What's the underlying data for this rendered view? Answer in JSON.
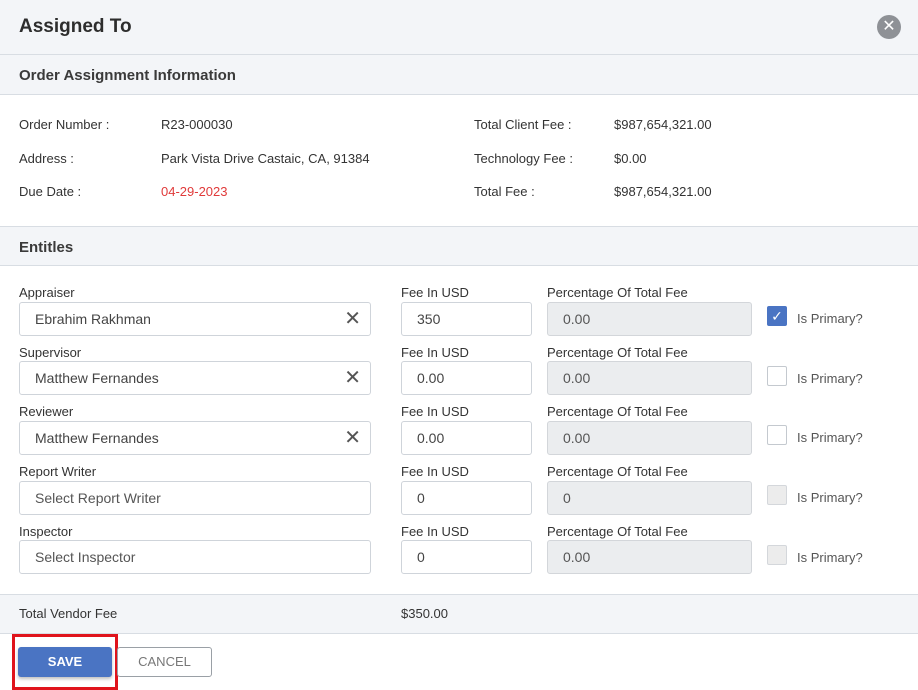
{
  "modal": {
    "title": "Assigned To"
  },
  "order_info": {
    "heading": "Order Assignment Information",
    "order_number_label": "Order Number :",
    "order_number": "R23-000030",
    "address_label": "Address :",
    "address": "Park Vista Drive Castaic, CA, 91384",
    "due_date_label": "Due Date :",
    "due_date": "04-29-2023",
    "total_client_fee_label": "Total Client Fee :",
    "total_client_fee": "$987,654,321.00",
    "technology_fee_label": "Technology Fee :",
    "technology_fee": "$0.00",
    "total_fee_label": "Total Fee :",
    "total_fee": "$987,654,321.00"
  },
  "entities": {
    "heading": "Entitles",
    "fee_label": "Fee In USD",
    "pct_label": "Percentage Of Total Fee",
    "primary_label": "Is Primary?",
    "rows": [
      {
        "role": "Appraiser",
        "person": "Ebrahim Rakhman",
        "fee": "350",
        "pct": "0.00"
      },
      {
        "role": "Supervisor",
        "person": "Matthew Fernandes",
        "fee": "0.00",
        "pct": "0.00"
      },
      {
        "role": "Reviewer",
        "person": "Matthew Fernandes",
        "fee": "0.00",
        "pct": "0.00"
      },
      {
        "role": "Report Writer",
        "placeholder": "Select Report Writer",
        "fee": "0",
        "pct": "0"
      },
      {
        "role": "Inspector",
        "placeholder": "Select Inspector",
        "fee": "0",
        "pct": "0.00"
      }
    ]
  },
  "totals": {
    "label": "Total Vendor Fee",
    "value": "$350.00"
  },
  "buttons": {
    "save": "SAVE",
    "cancel": "CANCEL"
  },
  "colors": {
    "primary": "#4a74c3",
    "due_date": "#e03a3a",
    "highlight": "#e0141c"
  }
}
